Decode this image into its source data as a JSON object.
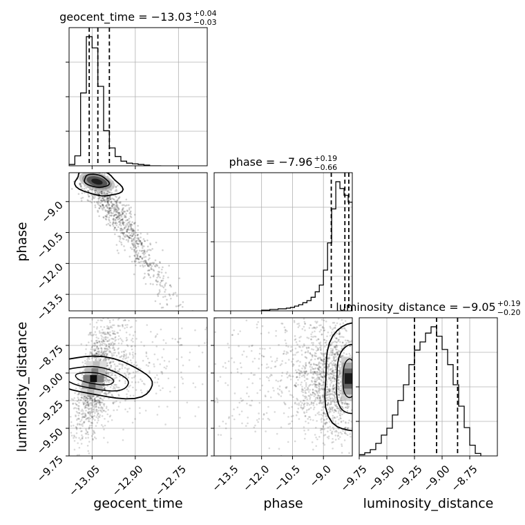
{
  "chart_data": {
    "type": "corner",
    "parameters": [
      "geocent_time",
      "phase",
      "luminosity_distance"
    ],
    "ranges": {
      "geocent_time": [
        -13.13,
        -12.65
      ],
      "phase": [
        -14.3,
        -7.6
      ],
      "luminosity_distance": [
        -9.75,
        -8.5
      ]
    },
    "ticks": {
      "geocent_time": [
        -13.05,
        -12.9,
        -12.75
      ],
      "phase": [
        -13.5,
        -12.0,
        -10.5,
        -9.0
      ],
      "luminosity_distance": [
        -9.75,
        -9.5,
        -9.25,
        -9.0,
        -8.75
      ]
    },
    "tick_labels": {
      "geocent_time": [
        "−13.05",
        "−12.90",
        "−12.75"
      ],
      "phase_x": [
        "−13.5",
        "−12.0",
        "−10.5",
        "−9.0"
      ],
      "phase_y": [
        "−9.0",
        "−10.5",
        "−12.0",
        "−13.5"
      ],
      "luminosity_distance_x": [
        "−9.75",
        "−9.50",
        "−9.25",
        "−9.00",
        "−8.75"
      ],
      "luminosity_distance_y": [
        "−8.75",
        "−9.00",
        "−9.25",
        "−9.50",
        "−9.75"
      ]
    },
    "titles": [
      {
        "param": "geocent_time",
        "text": "geocent_time = −13.03",
        "plus": "+0.04",
        "minus": "−0.03"
      },
      {
        "param": "phase",
        "text": "phase = −7.96",
        "plus": "+0.19",
        "minus": "−0.66"
      },
      {
        "param": "luminosity_distance",
        "text": "luminosity_distance = −9.05",
        "plus": "+0.19",
        "minus": "−0.20"
      }
    ],
    "axis_labels": {
      "x": [
        "geocent_time",
        "phase",
        "luminosity_distance"
      ],
      "y": [
        "phase",
        "luminosity_distance"
      ]
    },
    "quantiles": {
      "geocent_time": [
        -13.06,
        -13.03,
        -12.99
      ],
      "phase": [
        -8.62,
        -7.96,
        -7.77
      ],
      "luminosity_distance": [
        -9.25,
        -9.05,
        -8.86
      ]
    },
    "histograms": {
      "geocent_time": {
        "edges": [
          -13.13,
          -13.11,
          -13.09,
          -13.07,
          -13.05,
          -13.03,
          -13.01,
          -12.99,
          -12.97,
          -12.95,
          -12.93,
          -12.91,
          -12.89,
          -12.87,
          -12.85,
          -12.83,
          -12.81
        ],
        "counts": [
          2,
          15,
          110,
          195,
          178,
          120,
          53,
          27,
          14,
          7,
          4,
          3,
          2,
          1,
          0,
          0
        ]
      },
      "phase": {
        "edges": [
          -12.0,
          -11.8,
          -11.6,
          -11.4,
          -11.2,
          -11.0,
          -10.8,
          -10.6,
          -10.4,
          -10.2,
          -10.0,
          -9.8,
          -9.6,
          -9.4,
          -9.2,
          -9.0,
          -8.8,
          -8.6,
          -8.4,
          -8.2,
          -8.0,
          -7.8,
          -7.6
        ],
        "counts": [
          1,
          1,
          2,
          2,
          3,
          3,
          4,
          5,
          7,
          9,
          12,
          15,
          20,
          28,
          38,
          60,
          100,
          150,
          190,
          180,
          170,
          160
        ]
      },
      "luminosity_distance": {
        "edges": [
          -9.75,
          -9.7,
          -9.65,
          -9.6,
          -9.55,
          -9.5,
          -9.45,
          -9.4,
          -9.35,
          -9.3,
          -9.25,
          -9.2,
          -9.15,
          -9.1,
          -9.05,
          -9.0,
          -8.95,
          -8.9,
          -8.85,
          -8.8,
          -8.75,
          -8.7,
          -8.65
        ],
        "counts": [
          2,
          5,
          10,
          20,
          33,
          44,
          65,
          88,
          113,
          145,
          168,
          181,
          195,
          205,
          190,
          169,
          145,
          113,
          79,
          45,
          17,
          4
        ]
      }
    },
    "joint": {
      "geocent_time_vs_phase": {
        "mode": {
          "x": -13.045,
          "y": -7.9
        },
        "trend": "negative"
      },
      "geocent_time_vs_luminosity_distance": {
        "mode": {
          "x": -13.045,
          "y": -9.05
        },
        "trend": "positive"
      },
      "phase_vs_luminosity_distance": {
        "mode": {
          "x": -7.8,
          "y": -9.05
        },
        "trend": "none"
      }
    },
    "colors": {
      "line": "#000000",
      "grid": "#b0b0b0",
      "points": "#000000"
    },
    "grid": true
  }
}
